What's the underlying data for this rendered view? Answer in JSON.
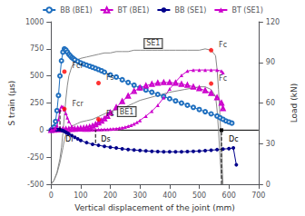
{
  "chart_data": {
    "type": "line",
    "xlabel": "Vertical displacement of the joint (mm)",
    "ylabel": "S train (μs)",
    "y2label": "Load (kN)",
    "xlim": [
      0,
      700
    ],
    "ylim": [
      -500,
      1000
    ],
    "y2lim": [
      0,
      120
    ],
    "xticks": [
      0,
      100,
      200,
      300,
      400,
      500,
      600,
      700
    ],
    "yticks": [
      -500,
      -250,
      0,
      250,
      500,
      750,
      1000
    ],
    "y2ticks": [
      0,
      30,
      60,
      90,
      120
    ],
    "grid": false,
    "legend": "top",
    "series": [
      {
        "name": "BB (BE1)",
        "color": "#1f6fbf",
        "marker": "circle_open",
        "x": [
          0,
          5,
          10,
          15,
          20,
          25,
          30,
          35,
          40,
          45,
          50,
          55,
          60,
          65,
          70,
          75,
          80,
          90,
          100,
          110,
          120,
          130,
          140,
          150,
          160,
          170,
          180,
          200,
          220,
          240,
          260,
          280,
          300,
          320,
          340,
          360,
          380,
          400,
          420,
          440,
          460,
          480,
          500,
          520,
          540,
          560,
          570,
          580,
          590,
          600,
          610
        ],
        "values": [
          0,
          10,
          30,
          80,
          180,
          320,
          500,
          640,
          720,
          750,
          740,
          720,
          700,
          685,
          670,
          660,
          650,
          635,
          620,
          610,
          600,
          590,
          580,
          570,
          560,
          548,
          535,
          510,
          490,
          465,
          440,
          415,
          390,
          370,
          350,
          330,
          310,
          290,
          270,
          250,
          230,
          210,
          190,
          170,
          150,
          130,
          115,
          100,
          85,
          75,
          65
        ]
      },
      {
        "name": "BT (BE1)",
        "color": "#cc00cc",
        "marker": "triangle_open",
        "x": [
          0,
          10,
          20,
          30,
          40,
          50,
          60,
          70,
          80,
          90,
          100,
          110,
          120,
          130,
          140,
          150,
          160,
          170,
          180,
          190,
          200,
          220,
          240,
          260,
          280,
          300,
          320,
          340,
          360,
          380,
          400,
          420,
          440,
          460,
          480,
          500,
          520,
          540,
          560,
          575,
          580
        ],
        "values": [
          0,
          2,
          4,
          5,
          6,
          7,
          8,
          9,
          10,
          12,
          15,
          18,
          22,
          28,
          38,
          52,
          68,
          85,
          105,
          130,
          160,
          210,
          265,
          315,
          360,
          390,
          410,
          425,
          435,
          440,
          440,
          435,
          425,
          415,
          400,
          385,
          365,
          340,
          300,
          250,
          200
        ]
      },
      {
        "name": "BB (SE1)",
        "color": "#00008b",
        "marker": "circle",
        "x": [
          0,
          5,
          10,
          15,
          20,
          25,
          30,
          35,
          40,
          45,
          50,
          55,
          60,
          70,
          80,
          90,
          100,
          120,
          140,
          160,
          180,
          200,
          220,
          240,
          260,
          280,
          300,
          320,
          340,
          360,
          380,
          400,
          420,
          440,
          460,
          480,
          500,
          520,
          540,
          560,
          580,
          600,
          615,
          625
        ],
        "values": [
          0,
          1,
          2,
          3,
          4,
          5,
          3,
          0,
          -5,
          -12,
          -20,
          -28,
          -35,
          -50,
          -65,
          -80,
          -95,
          -115,
          -130,
          -140,
          -150,
          -158,
          -165,
          -172,
          -178,
          -183,
          -188,
          -192,
          -195,
          -198,
          -200,
          -200,
          -200,
          -200,
          -198,
          -196,
          -193,
          -189,
          -185,
          -180,
          -175,
          -170,
          -165,
          -320
        ]
      },
      {
        "name": "BT (SE1)",
        "color": "#cc00cc",
        "marker": "triangle",
        "x": [
          0,
          5,
          10,
          15,
          20,
          25,
          30,
          35,
          40,
          45,
          50,
          55,
          60,
          70,
          80,
          90,
          100,
          110,
          120,
          130,
          140,
          150,
          160,
          170,
          180,
          190,
          200,
          210,
          220,
          230,
          240,
          250,
          260,
          270,
          280,
          290,
          300,
          320,
          340,
          360,
          380,
          400,
          420,
          440,
          460,
          480,
          500,
          520,
          540,
          560,
          575,
          580
        ],
        "values": [
          0,
          2,
          5,
          15,
          40,
          100,
          190,
          220,
          215,
          190,
          155,
          115,
          80,
          35,
          12,
          5,
          3,
          2,
          2,
          2,
          3,
          4,
          5,
          6,
          7,
          8,
          10,
          12,
          14,
          18,
          22,
          28,
          36,
          46,
          58,
          72,
          90,
          130,
          175,
          230,
          300,
          380,
          445,
          505,
          545,
          555,
          555,
          555,
          555,
          555,
          545,
          530
        ]
      },
      {
        "color": "#888888",
        "axis": "y2",
        "x": [
          0,
          10,
          20,
          30,
          40,
          45,
          50,
          60,
          70,
          80,
          90,
          100,
          120,
          140,
          160,
          180,
          200,
          220,
          240,
          260,
          280,
          300,
          350,
          400,
          450,
          500,
          520,
          540,
          555,
          560,
          565,
          570,
          575,
          580
        ],
        "values": [
          0,
          3,
          8,
          16,
          27,
          33,
          37,
          41,
          43,
          44,
          45,
          46,
          47,
          48,
          50,
          52,
          54,
          55,
          56,
          58,
          60,
          62,
          65,
          68,
          70,
          72,
          72,
          70,
          65,
          55,
          40,
          20,
          5,
          0
        ]
      },
      {
        "color": "#888888",
        "axis": "y2",
        "x": [
          0,
          10,
          20,
          30,
          35,
          40,
          45,
          50,
          55,
          60,
          70,
          80,
          90,
          100,
          120,
          140,
          160,
          180,
          200,
          220,
          240,
          260,
          280,
          300,
          320,
          340,
          360,
          380,
          400,
          420,
          440,
          460,
          480,
          500,
          520,
          540,
          555,
          560,
          565,
          570,
          575,
          580
        ],
        "values": [
          0,
          3,
          9,
          19,
          27,
          38,
          51,
          63,
          73,
          80,
          87,
          90,
          92,
          93,
          94,
          95,
          96,
          97,
          97,
          98,
          98,
          98,
          99,
          99,
          99,
          99,
          99,
          99,
          99,
          99,
          99,
          99,
          99,
          99,
          100,
          99,
          95,
          85,
          70,
          50,
          25,
          0
        ]
      }
    ],
    "annotations": [
      {
        "type": "point",
        "text": "Fcr",
        "x": 45,
        "y": 540,
        "color": "red"
      },
      {
        "type": "point",
        "text": "Fs",
        "x": 160,
        "y": 435,
        "color": "red"
      },
      {
        "type": "point",
        "text": "Fcr",
        "x": 45,
        "y": 195,
        "color": "red"
      },
      {
        "type": "point",
        "text": "Fs",
        "x": 160,
        "y": 100,
        "color": "red"
      },
      {
        "type": "point",
        "text": "Fc",
        "x": 540,
        "y": 99,
        "axis": "y2",
        "color": "red"
      },
      {
        "type": "point",
        "text": "Fc",
        "x": 540,
        "y": 430,
        "color": "red"
      },
      {
        "type": "hline",
        "y": 0
      },
      {
        "type": "vline",
        "text": "Di",
        "x": 30,
        "y": [
          0,
          200
        ]
      },
      {
        "type": "vline",
        "text": "Ds",
        "x": 150,
        "y": [
          -120,
          0
        ]
      },
      {
        "type": "vline",
        "text": "Dc",
        "x": 575,
        "y": [
          -500,
          0
        ],
        "marker": "square"
      },
      {
        "type": "box",
        "text": "BE1",
        "x": 210,
        "y": 170
      },
      {
        "type": "box",
        "text": "SE1",
        "x": 300,
        "y": 800
      }
    ]
  }
}
